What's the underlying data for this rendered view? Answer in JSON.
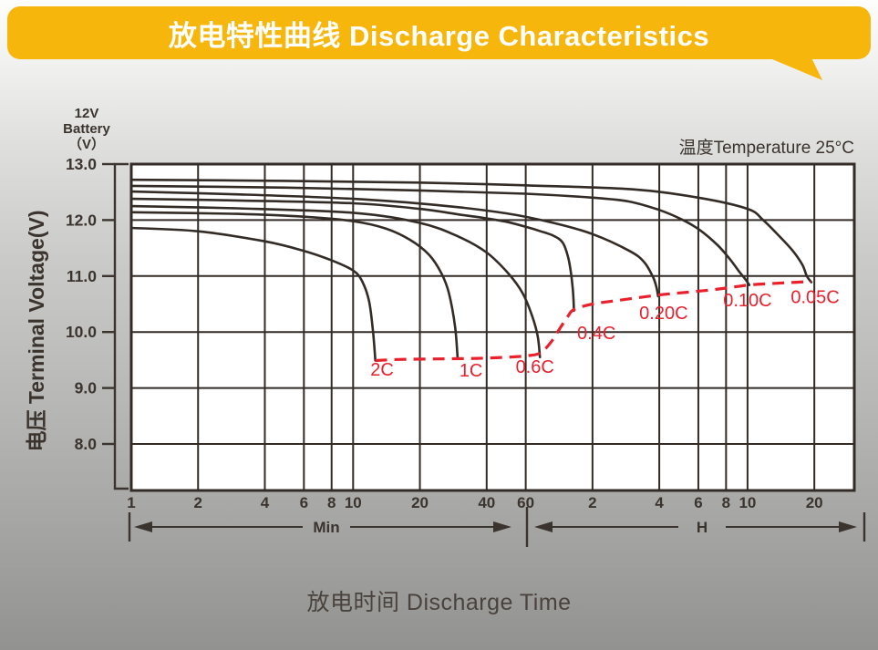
{
  "banner": {
    "title": "放电特性曲线 Discharge Characteristics",
    "background": "#F7B60B",
    "text_color": "#FFFFFF"
  },
  "battery_label": {
    "line1": "12V",
    "line2": "Battery",
    "line3": "（V）"
  },
  "temperature_note": "温度Temperature 25°C",
  "axis_range_labels": {
    "minutes": "Min",
    "hours": "H"
  },
  "colors": {
    "curve": "#332B26",
    "grid": "#332B26",
    "text": "#3B342E",
    "red": "#E8212D",
    "plot_background": "#FFFFFF"
  },
  "chart_data": {
    "type": "line",
    "title": "放电特性曲线 Discharge Characteristics",
    "xlabel": "放电时间 Discharge Time",
    "ylabel": "电压 Terminal Voltage(V)",
    "x_scale": "log",
    "grid": true,
    "x_range_minutes": [
      1,
      1832
    ],
    "y_range": [
      7.17,
      13
    ],
    "x_ticks_minutes": {
      "values": [
        1,
        2,
        4,
        6,
        8,
        10,
        20,
        40,
        60
      ],
      "labels": [
        "1",
        "2",
        "4",
        "6",
        "8",
        "10",
        "20",
        "40",
        "60"
      ]
    },
    "x_ticks_hours": {
      "values_minutes": [
        120,
        240,
        360,
        480,
        600,
        1200
      ],
      "labels": [
        "2",
        "4",
        "6",
        "8",
        "10",
        "20"
      ]
    },
    "y_ticks": {
      "values": [
        13,
        12,
        11,
        10,
        9,
        8
      ],
      "labels": [
        "13.0",
        "12.0",
        "11.0",
        "10.0",
        "9.0",
        "8.0"
      ]
    },
    "series": [
      {
        "name": "0.05C",
        "label": "0.05C",
        "label_anchor": [
          1210,
          10.61
        ],
        "points": [
          [
            1,
            12.72
          ],
          [
            5,
            12.7
          ],
          [
            20,
            12.67
          ],
          [
            60,
            12.62
          ],
          [
            180,
            12.55
          ],
          [
            360,
            12.4
          ],
          [
            600,
            12.2
          ],
          [
            705,
            12.0
          ],
          [
            840,
            11.7
          ],
          [
            960,
            11.45
          ],
          [
            1060,
            11.2
          ],
          [
            1110,
            11.0
          ],
          [
            1164,
            10.89
          ]
        ]
      },
      {
        "name": "0.10C",
        "label": "0.10C",
        "label_anchor": [
          600,
          10.56
        ],
        "points": [
          [
            1,
            12.61
          ],
          [
            5,
            12.58
          ],
          [
            20,
            12.53
          ],
          [
            60,
            12.47
          ],
          [
            120,
            12.4
          ],
          [
            176,
            12.33
          ],
          [
            240,
            12.18
          ],
          [
            300,
            12.02
          ],
          [
            363,
            11.83
          ],
          [
            440,
            11.55
          ],
          [
            500,
            11.3
          ],
          [
            550,
            11.08
          ],
          [
            585,
            10.95
          ],
          [
            611,
            10.84
          ]
        ]
      },
      {
        "name": "0.20C",
        "label": "0.20C",
        "label_anchor": [
          251,
          10.33
        ],
        "points": [
          [
            1,
            12.51
          ],
          [
            3,
            12.46
          ],
          [
            10,
            12.38
          ],
          [
            25,
            12.26
          ],
          [
            49,
            12.12
          ],
          [
            80,
            11.95
          ],
          [
            120,
            11.75
          ],
          [
            176,
            11.45
          ],
          [
            205,
            11.25
          ],
          [
            225,
            10.98
          ],
          [
            233,
            10.8
          ],
          [
            237,
            10.64
          ]
        ]
      },
      {
        "name": "0.4C",
        "label": "0.4C",
        "label_anchor": [
          125,
          9.97
        ],
        "points": [
          [
            1,
            12.38
          ],
          [
            3,
            12.35
          ],
          [
            10,
            12.3
          ],
          [
            20,
            12.2
          ],
          [
            30,
            12.1
          ],
          [
            40,
            12.03
          ],
          [
            49,
            11.97
          ],
          [
            60,
            11.88
          ],
          [
            70,
            11.8
          ],
          [
            80,
            11.72
          ],
          [
            88,
            11.6
          ],
          [
            93,
            11.35
          ],
          [
            96,
            11.05
          ],
          [
            98,
            10.72
          ],
          [
            99,
            10.38
          ]
        ]
      },
      {
        "name": "0.6C",
        "label": "0.6C",
        "label_anchor": [
          66,
          9.37
        ],
        "points": [
          [
            1,
            12.25
          ],
          [
            3,
            12.21
          ],
          [
            10,
            12.13
          ],
          [
            20,
            11.95
          ],
          [
            30,
            11.7
          ],
          [
            40,
            11.42
          ],
          [
            50,
            11.05
          ],
          [
            58,
            10.7
          ],
          [
            64,
            10.3
          ],
          [
            68,
            9.92
          ],
          [
            69.5,
            9.55
          ]
        ]
      },
      {
        "name": "1C",
        "label": "1C",
        "label_anchor": [
          34,
          9.3
        ],
        "points": [
          [
            1,
            12.14
          ],
          [
            3,
            12.11
          ],
          [
            6,
            12.06
          ],
          [
            10,
            11.98
          ],
          [
            14,
            11.85
          ],
          [
            18,
            11.65
          ],
          [
            22,
            11.38
          ],
          [
            25,
            11.05
          ],
          [
            27,
            10.7
          ],
          [
            28.8,
            10.1
          ],
          [
            29.6,
            9.52
          ]
        ]
      },
      {
        "name": "2C",
        "label": "2C",
        "label_anchor": [
          13.5,
          9.32
        ],
        "points": [
          [
            1,
            11.86
          ],
          [
            2,
            11.8
          ],
          [
            4,
            11.62
          ],
          [
            6,
            11.45
          ],
          [
            8,
            11.28
          ],
          [
            10,
            11.1
          ],
          [
            11,
            10.9
          ],
          [
            11.8,
            10.55
          ],
          [
            12.3,
            10.0
          ],
          [
            12.6,
            9.49
          ]
        ]
      }
    ],
    "cutoff_line": {
      "name": "end-of-discharge-voltage",
      "style": "dashed",
      "color": "#E8212D",
      "points": [
        [
          12.6,
          9.49
        ],
        [
          16,
          9.51
        ],
        [
          24,
          9.52
        ],
        [
          36,
          9.53
        ],
        [
          50,
          9.55
        ],
        [
          62,
          9.58
        ],
        [
          70,
          9.63
        ],
        [
          78,
          9.82
        ],
        [
          86,
          10.08
        ],
        [
          93,
          10.28
        ],
        [
          99,
          10.4
        ],
        [
          120,
          10.5
        ],
        [
          160,
          10.57
        ],
        [
          237,
          10.66
        ],
        [
          320,
          10.71
        ],
        [
          450,
          10.77
        ],
        [
          611,
          10.84
        ],
        [
          800,
          10.87
        ],
        [
          1000,
          10.89
        ],
        [
          1164,
          10.9
        ]
      ]
    }
  }
}
